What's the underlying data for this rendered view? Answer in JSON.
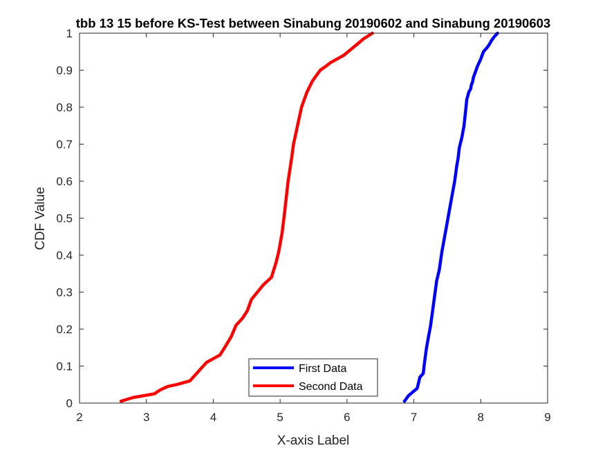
{
  "chart_data": {
    "type": "line",
    "title": "tbb 13 15 before KS-Test between Sinabung 20190602 and Sinabung 20190603",
    "xlabel": "X-axis Label",
    "ylabel": "CDF Value",
    "xlim": [
      2,
      9
    ],
    "ylim": [
      0,
      1
    ],
    "xticks": [
      2,
      3,
      4,
      5,
      6,
      7,
      8,
      9
    ],
    "yticks": [
      0,
      0.1,
      0.2,
      0.3,
      0.4,
      0.5,
      0.6,
      0.7,
      0.8,
      0.9,
      1
    ],
    "ytick_labels": [
      "0",
      "0.1",
      "0.2",
      "0.3",
      "0.4",
      "0.5",
      "0.6",
      "0.7",
      "0.8",
      "0.9",
      "1"
    ],
    "grid": false,
    "box": true,
    "legend": {
      "position": "bottom-center",
      "entries": [
        "First Data",
        "Second Data"
      ]
    },
    "series": [
      {
        "name": "First Data",
        "color": "#0000ff",
        "x": [
          6.86,
          6.92,
          7.05,
          7.09,
          7.14,
          7.16,
          7.19,
          7.22,
          7.25,
          7.28,
          7.31,
          7.34,
          7.38,
          7.42,
          7.45,
          7.49,
          7.53,
          7.57,
          7.61,
          7.64,
          7.66,
          7.68,
          7.72,
          7.75,
          7.78,
          7.79,
          7.82,
          7.85,
          7.86,
          7.88,
          7.89,
          7.91,
          7.95,
          8.0,
          8.04,
          8.09,
          8.13,
          8.16,
          8.2,
          8.25
        ],
        "y": [
          0.005,
          0.02,
          0.04,
          0.07,
          0.08,
          0.11,
          0.15,
          0.18,
          0.21,
          0.25,
          0.29,
          0.33,
          0.36,
          0.41,
          0.44,
          0.48,
          0.52,
          0.56,
          0.6,
          0.64,
          0.66,
          0.69,
          0.72,
          0.75,
          0.8,
          0.82,
          0.84,
          0.85,
          0.86,
          0.87,
          0.88,
          0.89,
          0.91,
          0.93,
          0.95,
          0.96,
          0.97,
          0.98,
          0.99,
          1.0
        ]
      },
      {
        "name": "Second Data",
        "color": "#ff0000",
        "x": [
          2.62,
          2.8,
          3.12,
          3.2,
          3.32,
          3.45,
          3.65,
          3.75,
          3.85,
          3.9,
          4.0,
          4.1,
          4.17,
          4.27,
          4.34,
          4.44,
          4.51,
          4.57,
          4.66,
          4.75,
          4.87,
          4.94,
          4.98,
          5.03,
          5.07,
          5.12,
          5.17,
          5.2,
          5.26,
          5.32,
          5.4,
          5.48,
          5.52,
          5.6,
          5.68,
          5.75,
          5.85,
          5.95,
          6.05,
          6.15,
          6.25,
          6.38
        ],
        "y": [
          0.005,
          0.015,
          0.025,
          0.035,
          0.045,
          0.05,
          0.06,
          0.08,
          0.1,
          0.11,
          0.12,
          0.13,
          0.15,
          0.18,
          0.21,
          0.23,
          0.25,
          0.28,
          0.3,
          0.32,
          0.34,
          0.38,
          0.41,
          0.46,
          0.52,
          0.6,
          0.66,
          0.7,
          0.75,
          0.8,
          0.84,
          0.87,
          0.88,
          0.9,
          0.91,
          0.92,
          0.93,
          0.94,
          0.955,
          0.97,
          0.985,
          1.0
        ]
      }
    ]
  }
}
